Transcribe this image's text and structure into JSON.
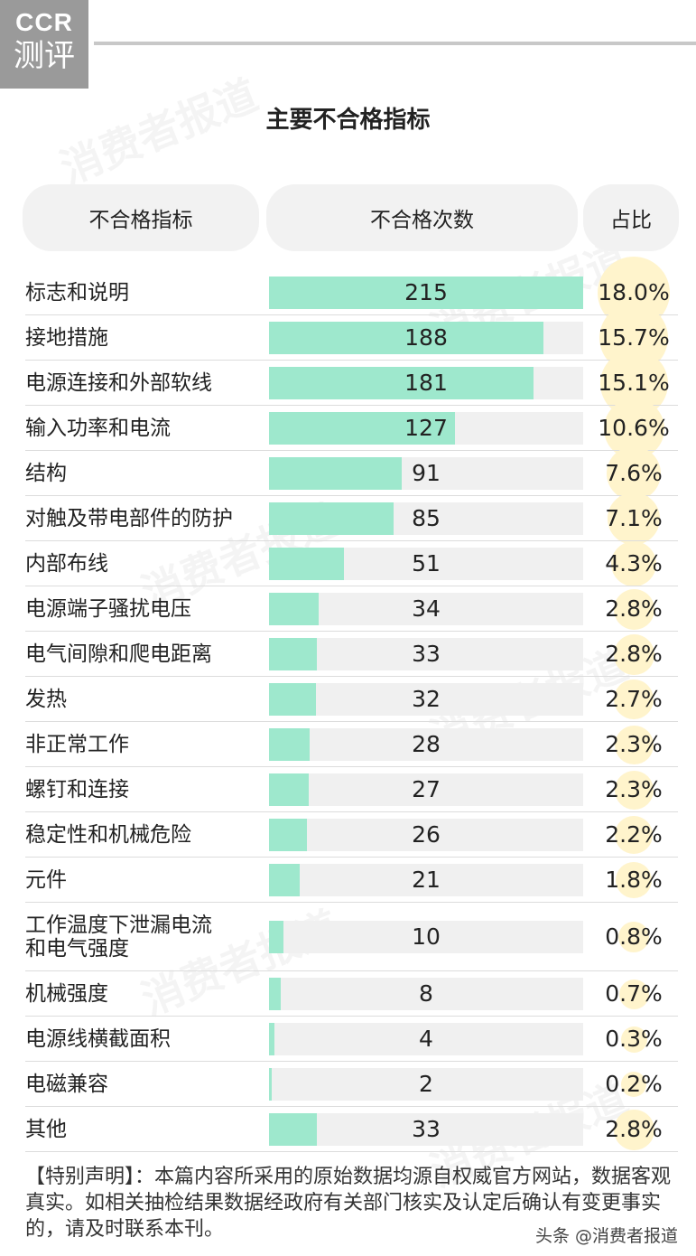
{
  "logo": {
    "line1": "CCR",
    "line2": "测评"
  },
  "watermark_text": "消费者报道",
  "chart_data": {
    "type": "table",
    "title": "主要不合格指标",
    "columns": [
      "不合格指标",
      "不合格次数",
      "占比"
    ],
    "max_count": 215,
    "rows": [
      {
        "name": "标志和说明",
        "count": 215,
        "pct": "18.0%"
      },
      {
        "name": "接地措施",
        "count": 188,
        "pct": "15.7%"
      },
      {
        "name": "电源连接和外部软线",
        "count": 181,
        "pct": "15.1%"
      },
      {
        "name": "输入功率和电流",
        "count": 127,
        "pct": "10.6%"
      },
      {
        "name": "结构",
        "count": 91,
        "pct": "7.6%"
      },
      {
        "name": "对触及带电部件的防护",
        "count": 85,
        "pct": "7.1%"
      },
      {
        "name": "内部布线",
        "count": 51,
        "pct": "4.3%"
      },
      {
        "name": "电源端子骚扰电压",
        "count": 34,
        "pct": "2.8%"
      },
      {
        "name": "电气间隙和爬电距离",
        "count": 33,
        "pct": "2.8%"
      },
      {
        "name": "发热",
        "count": 32,
        "pct": "2.7%"
      },
      {
        "name": "非正常工作",
        "count": 28,
        "pct": "2.3%"
      },
      {
        "name": "螺钉和连接",
        "count": 27,
        "pct": "2.3%"
      },
      {
        "name": "稳定性和机械危险",
        "count": 26,
        "pct": "2.2%"
      },
      {
        "name": "元件",
        "count": 21,
        "pct": "1.8%"
      },
      {
        "name": "工作温度下泄漏电流\n和电气强度",
        "count": 10,
        "pct": "0.8%"
      },
      {
        "name": "机械强度",
        "count": 8,
        "pct": "0.7%"
      },
      {
        "name": "电源线横截面积",
        "count": 4,
        "pct": "0.3%"
      },
      {
        "name": "电磁兼容",
        "count": 2,
        "pct": "0.2%"
      },
      {
        "name": "其他",
        "count": 33,
        "pct": "2.8%"
      }
    ]
  },
  "note": "【特别声明】：本篇内容所采用的原始数据均源自权威官方网站，数据客观真实。如相关抽检结果数据经政府有关部门核实及认定后确认有变更事实的，请及时联系本刊。",
  "source": "头条 @消费者报道",
  "colors": {
    "bar": "#9ee8cd",
    "track": "#f0f0f0",
    "pct_circle": "#fff4cc",
    "header_bg": "#f2f2f2"
  }
}
